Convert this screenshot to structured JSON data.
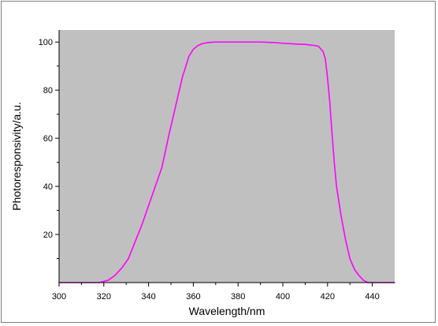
{
  "chart_data": {
    "type": "line",
    "title": "",
    "xlabel": "Wavelength/nm",
    "ylabel": "Photoresponsivity/a.u.",
    "xlim": [
      300,
      450
    ],
    "ylim": [
      0,
      105
    ],
    "x_ticks": [
      300,
      320,
      340,
      360,
      380,
      400,
      420,
      440
    ],
    "y_ticks": [
      20,
      40,
      60,
      80,
      100
    ],
    "x_tick_labels": [
      "300",
      "320",
      "340",
      "360",
      "380",
      "400",
      "420",
      "440"
    ],
    "y_tick_labels": [
      "20",
      "40",
      "60",
      "80",
      "100"
    ],
    "grid": false,
    "legend": "none",
    "plot_background": "#c0c0c0",
    "series": [
      {
        "color": "#ff00ff",
        "x": [
          300,
          310,
          318,
          322,
          325,
          328,
          331,
          334,
          337,
          340,
          343,
          346,
          349,
          352,
          355,
          358,
          360,
          362,
          364,
          366,
          368,
          370,
          375,
          380,
          385,
          390,
          395,
          400,
          405,
          410,
          414,
          416,
          418,
          419,
          420,
          421,
          422,
          423,
          424,
          426,
          428,
          430,
          432,
          434,
          436,
          438,
          440,
          445,
          450
        ],
        "y": [
          0,
          0,
          0,
          1,
          3,
          6,
          10,
          17,
          24,
          32,
          40,
          48,
          61,
          73,
          85,
          94,
          97,
          98.5,
          99.3,
          99.7,
          99.9,
          100,
          100,
          100,
          100,
          100,
          99.8,
          99.5,
          99.2,
          99,
          98.6,
          98.2,
          96,
          93,
          85,
          75,
          62,
          50,
          40,
          28,
          18,
          10,
          5.5,
          3,
          1,
          0,
          0,
          0,
          0
        ]
      }
    ]
  }
}
